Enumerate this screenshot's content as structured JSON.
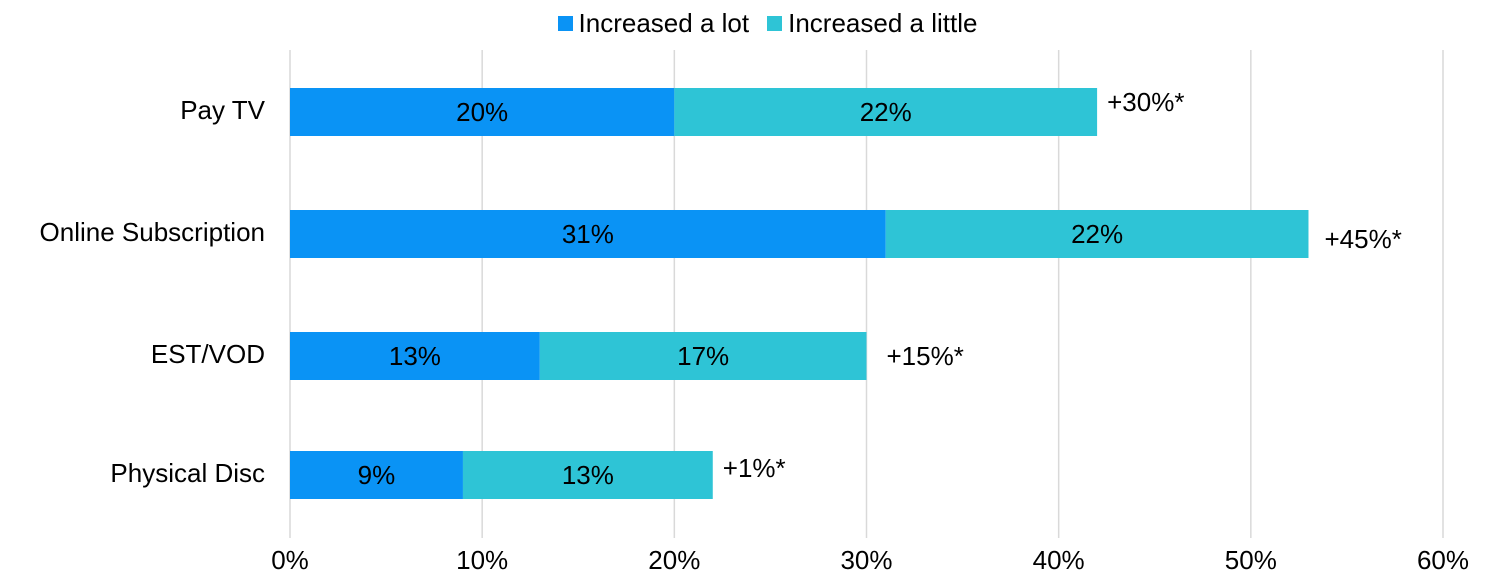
{
  "chart_data": {
    "type": "bar",
    "orientation": "horizontal",
    "stacked": true,
    "categories": [
      "Pay TV",
      "Online Subscription",
      "EST/VOD",
      "Physical Disc"
    ],
    "series": [
      {
        "name": "Increased a lot",
        "values": [
          20,
          31,
          13,
          9
        ],
        "labels": [
          "20%",
          "31%",
          "13%",
          "9%"
        ],
        "color": "#0A93F5"
      },
      {
        "name": "Increased a little",
        "values": [
          22,
          22,
          17,
          13
        ],
        "labels": [
          "22%",
          "22%",
          "17%",
          "13%"
        ],
        "color": "#2EC4D6"
      }
    ],
    "annotations": [
      "+30%*",
      "+45%*",
      "+15%*",
      "+1%*"
    ],
    "xlim": [
      0,
      60
    ],
    "xticks": [
      0,
      10,
      20,
      30,
      40,
      50,
      60
    ],
    "xtick_labels": [
      "0%",
      "10%",
      "20%",
      "30%",
      "40%",
      "50%",
      "60%"
    ],
    "grid": "vertical",
    "gridline_color": "#D9D9D9",
    "legend_position": "top-center"
  }
}
